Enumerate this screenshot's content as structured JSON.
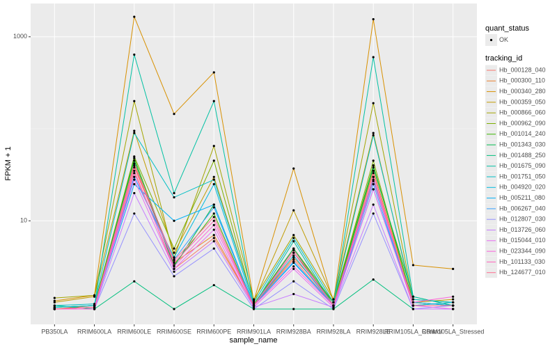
{
  "chart_data": {
    "type": "line",
    "x_label": "sample_name",
    "y_label": "FPKM + 1",
    "categories": [
      "PB350LA",
      "RRIM600LA",
      "RRIM600LE",
      "RRIM600SE",
      "RRIM600PE",
      "RRIM901LA",
      "RRIM928BA",
      "RRIM928LA",
      "RRIM928LE",
      "RRIM105LA_Control",
      "RRIM105LA_Stressed"
    ],
    "y_scale": "log",
    "ylim": [
      0.75,
      2300
    ],
    "yticks": [
      10,
      1000
    ],
    "minor_grid": [
      100
    ],
    "grid": true,
    "point_legend_title": "quant_status",
    "point_legend_label": "OK",
    "point_color": "#000000",
    "legend_title": "tracking_id",
    "legend_position": "right",
    "series": [
      {
        "name": "Hb_000128_040",
        "color": "#F8766D",
        "values": [
          1.1,
          1.1,
          35,
          3,
          6.5,
          1.2,
          3.8,
          1.2,
          30,
          1.2,
          1.2
        ]
      },
      {
        "name": "Hb_000300_110",
        "color": "#EA8331",
        "values": [
          1.1,
          1.2,
          40,
          3.5,
          7,
          1.2,
          4,
          1.3,
          35,
          1.3,
          1.2
        ]
      },
      {
        "name": "Hb_000340_280",
        "color": "#D89000",
        "values": [
          1.35,
          1.55,
          1650,
          145,
          410,
          1.35,
          37,
          1.3,
          1550,
          3.3,
          3.0
        ]
      },
      {
        "name": "Hb_000359_050",
        "color": "#C09B00",
        "values": [
          1.3,
          1.5,
          95,
          4.5,
          30,
          1.3,
          13,
          1.4,
          90,
          1.3,
          1.4
        ]
      },
      {
        "name": "Hb_000866_060",
        "color": "#A3A500",
        "values": [
          1.45,
          1.55,
          200,
          4.0,
          65,
          1.4,
          7,
          1.4,
          190,
          1.4,
          1.3
        ]
      },
      {
        "name": "Hb_000962_090",
        "color": "#7CAE00",
        "values": [
          1.15,
          1.2,
          50,
          5,
          45,
          1.25,
          5,
          1.3,
          45,
          1.2,
          1.3
        ]
      },
      {
        "name": "Hb_001014_240",
        "color": "#39B600",
        "values": [
          1.15,
          1.2,
          48,
          3.3,
          12,
          1.2,
          4.5,
          1.3,
          40,
          1.3,
          1.2
        ]
      },
      {
        "name": "Hb_001343_030",
        "color": "#00BB4E",
        "values": [
          1.1,
          1.15,
          45,
          3.2,
          15,
          1.2,
          5,
          1.2,
          38,
          1.5,
          1.2
        ]
      },
      {
        "name": "Hb_001488_250",
        "color": "#00BF7D",
        "values": [
          1.2,
          1.1,
          2.2,
          1.1,
          2.0,
          1.1,
          1.1,
          1.1,
          2.3,
          1.1,
          1.1
        ]
      },
      {
        "name": "Hb_001675_090",
        "color": "#00C1A3",
        "values": [
          1.15,
          1.2,
          640,
          20,
          200,
          1.2,
          6,
          1.2,
          600,
          1.5,
          1.2
        ]
      },
      {
        "name": "Hb_001751_050",
        "color": "#00BFC4",
        "values": [
          1.2,
          1.25,
          90,
          18,
          28,
          1.3,
          6.5,
          1.3,
          85,
          1.4,
          1.3
        ]
      },
      {
        "name": "Hb_004920_020",
        "color": "#00BAE0",
        "values": [
          1.15,
          1.2,
          30,
          4,
          25,
          1.2,
          4.2,
          1.2,
          28,
          1.2,
          1.3
        ]
      },
      {
        "name": "Hb_005211_080",
        "color": "#00B0F6",
        "values": [
          1.1,
          1.15,
          25,
          10,
          15,
          1.2,
          3.5,
          1.2,
          22,
          1.3,
          1.2
        ]
      },
      {
        "name": "Hb_006267_040",
        "color": "#35A2FF",
        "values": [
          1.1,
          1.1,
          30,
          3.8,
          14,
          1.2,
          3.6,
          1.2,
          25,
          1.2,
          1.2
        ]
      },
      {
        "name": "Hb_012807_030",
        "color": "#9590FF",
        "values": [
          1.1,
          1.1,
          12,
          2.5,
          5,
          1.1,
          2.2,
          1.1,
          12,
          1.1,
          1.2
        ]
      },
      {
        "name": "Hb_013726_060",
        "color": "#C77CFF",
        "values": [
          1.1,
          1.1,
          20,
          2.8,
          6,
          1.15,
          1.6,
          1.15,
          15,
          1.1,
          1.1
        ]
      },
      {
        "name": "Hb_015044_010",
        "color": "#E76BF3",
        "values": [
          1.1,
          1.15,
          28,
          3,
          8,
          1.15,
          3,
          1.15,
          22,
          1.2,
          1.1
        ]
      },
      {
        "name": "Hb_023344_090",
        "color": "#FA62DB",
        "values": [
          1.1,
          1.1,
          33,
          3.2,
          9,
          1.2,
          3.2,
          1.2,
          27,
          1.3,
          1.5
        ]
      },
      {
        "name": "Hb_101133_030",
        "color": "#FF62BC",
        "values": [
          1.1,
          1.15,
          38,
          3.5,
          10,
          1.2,
          4.5,
          1.2,
          30,
          1.2,
          1.2
        ]
      },
      {
        "name": "Hb_124677_010",
        "color": "#FF6C91",
        "values": [
          1.1,
          1.15,
          42,
          3.7,
          11,
          1.2,
          4.8,
          1.2,
          33,
          1.2,
          1.2
        ]
      }
    ]
  }
}
